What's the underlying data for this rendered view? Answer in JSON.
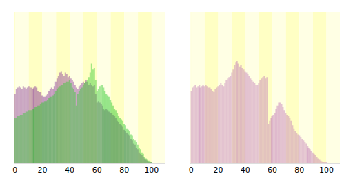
{
  "chart_data": [
    {
      "type": "bar",
      "stacked": false,
      "grid": false,
      "tick_labels": "x",
      "x": [
        0,
        1,
        2,
        3,
        4,
        5,
        6,
        7,
        8,
        9,
        10,
        11,
        12,
        13,
        14,
        15,
        16,
        17,
        18,
        19,
        20,
        21,
        22,
        23,
        24,
        25,
        26,
        27,
        28,
        29,
        30,
        31,
        32,
        33,
        34,
        35,
        36,
        37,
        38,
        39,
        40,
        41,
        42,
        43,
        44,
        45,
        46,
        47,
        48,
        49,
        50,
        51,
        52,
        53,
        54,
        55,
        56,
        57,
        58,
        59,
        60,
        61,
        62,
        63,
        64,
        65,
        66,
        67,
        68,
        69,
        70,
        71,
        72,
        73,
        74,
        75,
        76,
        77,
        78,
        79,
        80,
        81,
        82,
        83,
        84,
        85,
        86,
        87,
        88,
        89,
        90,
        91,
        92,
        93,
        94,
        95,
        96,
        97,
        98,
        99,
        100
      ],
      "xlim": [
        -0.5,
        110
      ],
      "xticks": [
        0,
        20,
        40,
        60,
        80,
        100
      ],
      "ylim": [
        0,
        100
      ],
      "series": [
        {
          "color": "#8a3a9a",
          "values": [
            46,
            49,
            50,
            51,
            50,
            49,
            51,
            50,
            49,
            50,
            51,
            50,
            50,
            49,
            50,
            51,
            50,
            48,
            47,
            47,
            45,
            44,
            44,
            45,
            46,
            48,
            49,
            50,
            49,
            51,
            54,
            56,
            58,
            60,
            61,
            59,
            58,
            60,
            59,
            57,
            58,
            56,
            55,
            54,
            52,
            50,
            49,
            51,
            52,
            53,
            54,
            53,
            55,
            54,
            52,
            53,
            52,
            51,
            52,
            46,
            40,
            41,
            40,
            39,
            38,
            36,
            35,
            36,
            35,
            34,
            33,
            33,
            32,
            31,
            30,
            28,
            27,
            26,
            25,
            24,
            22,
            21,
            20,
            19,
            18,
            16,
            15,
            13,
            12,
            10,
            9,
            7,
            6,
            5,
            4,
            3,
            2,
            1.5,
            1,
            0.5,
            0.3
          ]
        },
        {
          "color": "#33cc33",
          "values": [
            30,
            30,
            31,
            31,
            32,
            32,
            33,
            33,
            34,
            34,
            35,
            35,
            35,
            36,
            36,
            37,
            37,
            38,
            38,
            39,
            40,
            40,
            41,
            41,
            42,
            43,
            44,
            44,
            45,
            46,
            48,
            49,
            50,
            51,
            52,
            52,
            53,
            53,
            54,
            54,
            55,
            53,
            50,
            49,
            47,
            38,
            46,
            48,
            49,
            50,
            52,
            53,
            54,
            55,
            57,
            60,
            66,
            62,
            63,
            55,
            48,
            49,
            51,
            52,
            52,
            50,
            48,
            46,
            45,
            44,
            42,
            40,
            38,
            36,
            35,
            33,
            31,
            30,
            29,
            28,
            26,
            25,
            23,
            22,
            21,
            19,
            18,
            16,
            15,
            14,
            12,
            10,
            9,
            7,
            6,
            4,
            3,
            2,
            1.5,
            1,
            0.5
          ]
        }
      ]
    },
    {
      "type": "bar",
      "stacked": false,
      "grid": false,
      "tick_labels": "x",
      "x": [
        0,
        1,
        2,
        3,
        4,
        5,
        6,
        7,
        8,
        9,
        10,
        11,
        12,
        13,
        14,
        15,
        16,
        17,
        18,
        19,
        20,
        21,
        22,
        23,
        24,
        25,
        26,
        27,
        28,
        29,
        30,
        31,
        32,
        33,
        34,
        35,
        36,
        37,
        38,
        39,
        40,
        41,
        42,
        43,
        44,
        45,
        46,
        47,
        48,
        49,
        50,
        51,
        52,
        53,
        54,
        55,
        56,
        57,
        58,
        59,
        60,
        61,
        62,
        63,
        64,
        65,
        66,
        67,
        68,
        69,
        70,
        71,
        72,
        73,
        74,
        75,
        76,
        77,
        78,
        79,
        80,
        81,
        82,
        83,
        84,
        85,
        86,
        87,
        88,
        89,
        90,
        91,
        92,
        93,
        94,
        95,
        96,
        97,
        98,
        99,
        100
      ],
      "xlim": [
        -0.5,
        110
      ],
      "xticks": [
        0,
        20,
        40,
        60,
        80,
        100
      ],
      "ylim": [
        0,
        100
      ],
      "series": [
        {
          "color": "#c27bb8",
          "values": [
            48,
            50,
            51,
            52,
            50,
            51,
            52,
            50,
            51,
            52,
            51,
            52,
            51,
            50,
            50,
            49,
            48,
            47,
            49,
            50,
            51,
            52,
            53,
            52,
            51,
            53,
            55,
            56,
            57,
            58,
            60,
            62,
            65,
            67,
            68,
            66,
            64,
            65,
            63,
            62,
            61,
            60,
            59,
            58,
            56,
            55,
            54,
            53,
            52,
            52,
            53,
            55,
            56,
            57,
            58,
            56,
            57,
            26,
            28,
            30,
            31,
            32,
            33,
            36,
            38,
            40,
            40,
            39,
            37,
            35,
            33,
            32,
            31,
            30,
            28,
            25,
            23,
            21,
            20,
            19,
            18,
            17,
            16,
            15,
            14,
            13,
            11,
            10,
            9,
            8,
            7,
            6,
            5,
            4,
            3,
            2,
            1.5,
            1,
            0.5,
            0.3,
            0.2
          ]
        }
      ]
    }
  ]
}
